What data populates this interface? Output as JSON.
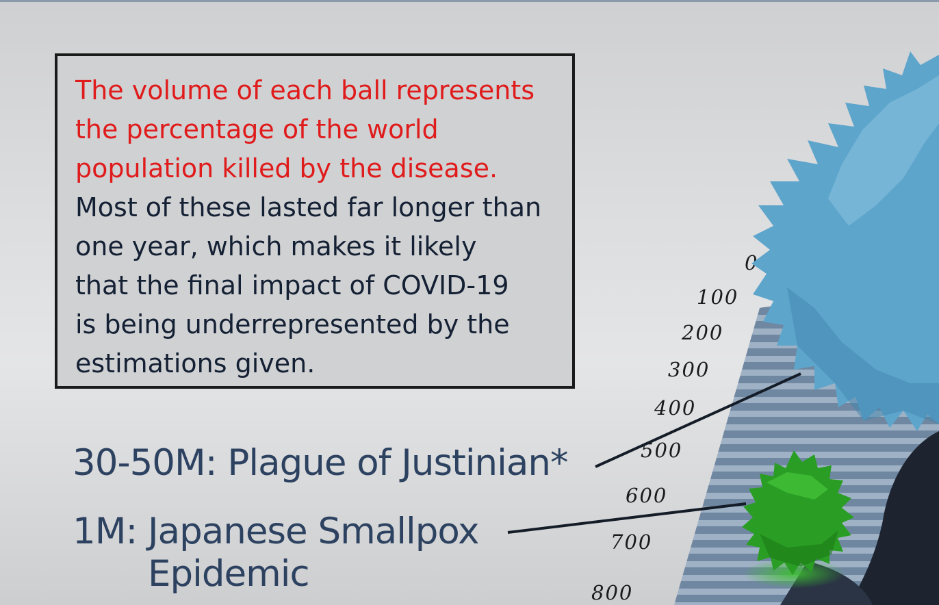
{
  "info_box": {
    "highlight_lines": [
      "The volume of each ball represents",
      "the percentage of the world",
      "population killed by the disease."
    ],
    "body_lines": [
      "Most of these lasted far longer than",
      "one year, which makes it likely",
      "that the final impact of COVID-19",
      "is being underrepresented by the",
      "estimations given."
    ]
  },
  "labels": {
    "justinian": "30-50M: Plague of Justinian*",
    "smallpox_prefix": "1M:",
    "smallpox_line1": "Japanese Smallpox",
    "smallpox_line2": "Epidemic"
  },
  "scale": {
    "ticks": [
      "0",
      "100",
      "200",
      "300",
      "400",
      "500",
      "600",
      "700",
      "800"
    ]
  },
  "colors": {
    "highlight": "#e01b1b",
    "body_text": "#142033",
    "label_text": "#2c4260",
    "justinian_ball": "#5fa7cc",
    "smallpox_ball": "#2fa52a"
  }
}
